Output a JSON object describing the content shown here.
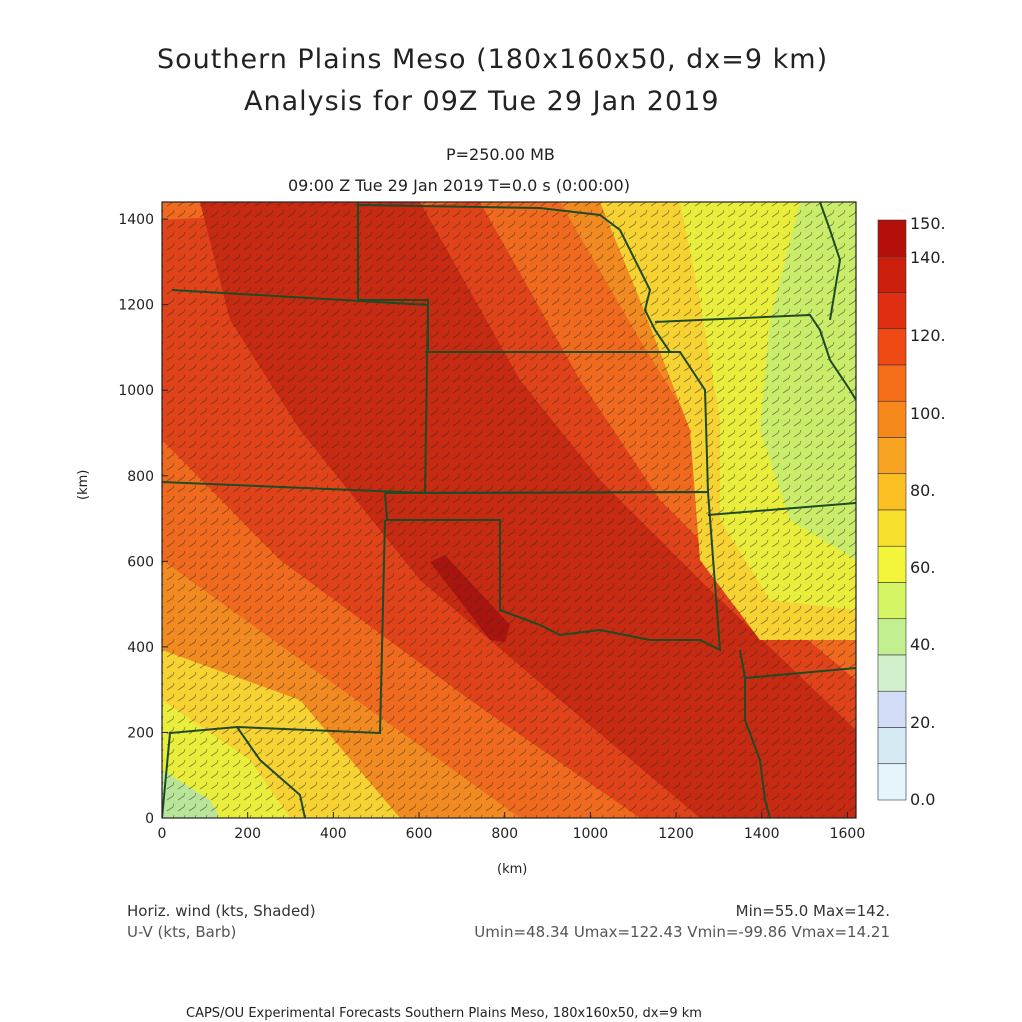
{
  "title": "Southern Plains Meso (180x160x50, dx=9 km)",
  "subtitle": "Analysis for 09Z Tue 29 Jan 2019",
  "level": "P=250.00 MB",
  "time_line": "09:00 Z Tue 29 Jan 2019    T=0.0 s (0:00:00)",
  "axes": {
    "xlabel": "(km)",
    "ylabel": "(km)",
    "xticks": [
      "0",
      "200",
      "400",
      "600",
      "800",
      "1000",
      "1200",
      "1400",
      "1600"
    ],
    "yticks": [
      "0",
      "200",
      "400",
      "600",
      "800",
      "1000",
      "1200",
      "1400"
    ]
  },
  "colorbar": {
    "labels": [
      "150.",
      "140.",
      "120.",
      "100.",
      "80.",
      "60.",
      "40.",
      "20.",
      "0.0"
    ],
    "colors": [
      "#b50f0a",
      "#cc1e0d",
      "#e02e12",
      "#f04a14",
      "#f56d19",
      "#f7891c",
      "#f8a321",
      "#fbc124",
      "#f9e02c",
      "#f2f53a",
      "#d6f564",
      "#c2f091",
      "#d2f0cc",
      "#d3dcf6",
      "#d6eaf6",
      "#e6f4fb"
    ]
  },
  "legend": {
    "left_line1": "Horiz. wind (kts, Shaded)",
    "left_line2": "U-V (kts, Barb)",
    "right_line1": "Min=55.0 Max=142.",
    "right_line2": "Umin=48.34 Umax=122.43 Vmin=-99.86 Vmax=14.21"
  },
  "footer": "CAPS/OU Experimental Forecasts  Southern Plains Meso, 180x160x50, dx=9 km",
  "map_colors": {
    "core": "#a8150f",
    "jet_high": "#c62a12",
    "jet": "#e0431a",
    "jet_edge": "#ef6a1e",
    "mid": "#f28a22",
    "orange_light": "#f7a52a",
    "yellow": "#f7d233",
    "yellow_green": "#e9ee3c",
    "green_light": "#c9ed6a",
    "green_pale": "#b8e59a",
    "borders": "#1f4a24"
  }
}
